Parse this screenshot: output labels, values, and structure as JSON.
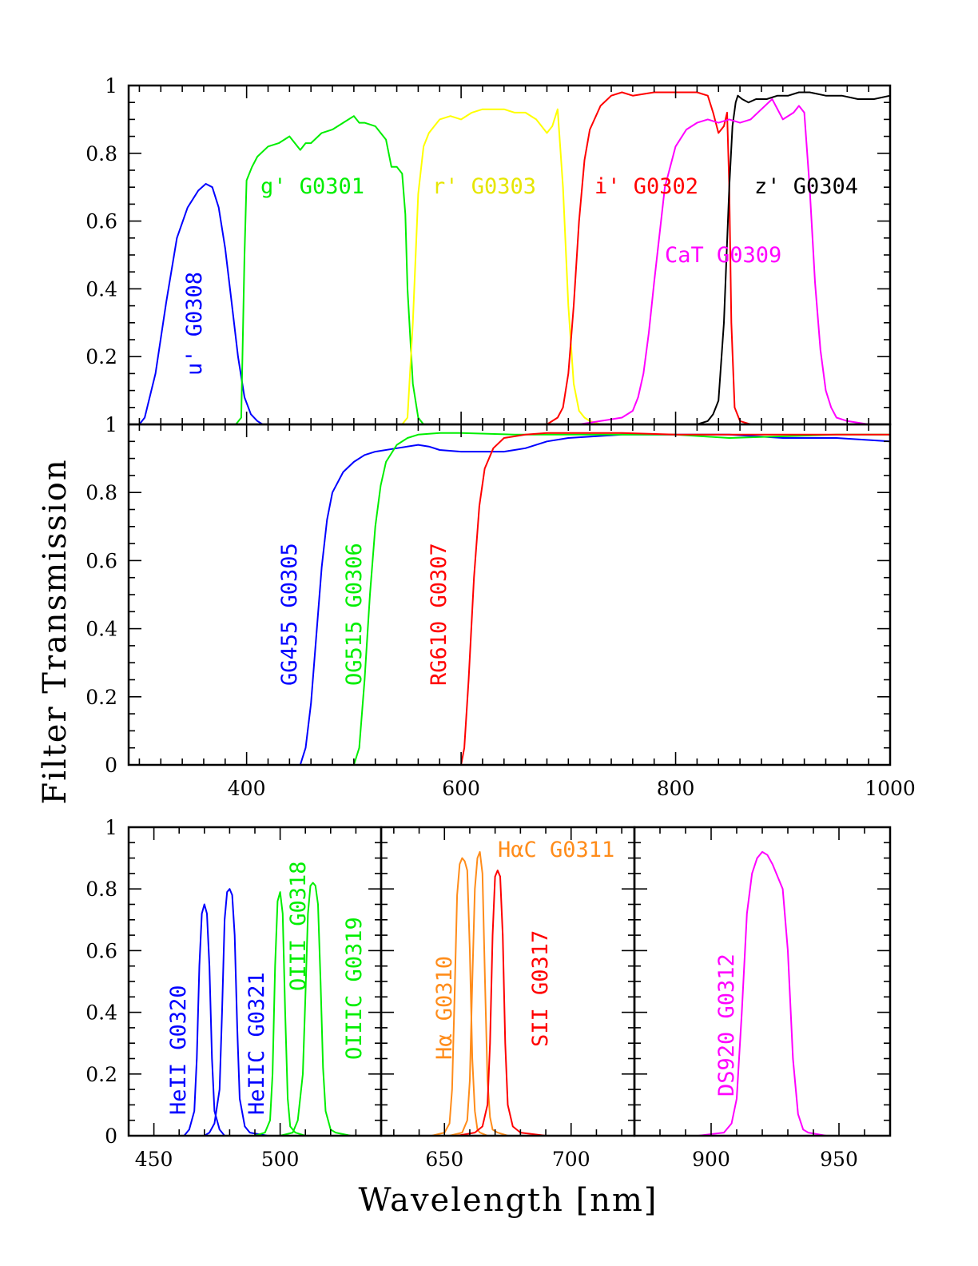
{
  "ylabel": "Filter Transmission",
  "xlabel": "Wavelength [nm]",
  "colors": {
    "blue": "#0000ff",
    "green": "#00ee00",
    "yellow": "#ffff00",
    "red": "#ff0000",
    "black": "#000000",
    "magenta": "#ff00ff",
    "orange": "#ff8c1a"
  },
  "chart_data": [
    {
      "type": "line",
      "panel": "broadband",
      "xlim": [
        290,
        1000
      ],
      "ylim": [
        0,
        1
      ],
      "yticks": [
        0.2,
        0.4,
        0.6,
        0.8,
        1
      ],
      "yticklabels": [
        "0.2",
        "0.4",
        "0.6",
        "0.8",
        "1"
      ],
      "series": [
        {
          "name": "u' G0308",
          "color": "blue",
          "label_orient": "vertical",
          "x": [
            300,
            305,
            315,
            325,
            335,
            345,
            355,
            362,
            368,
            374,
            380,
            386,
            392,
            398,
            404,
            410,
            415,
            420
          ],
          "y": [
            0,
            0.02,
            0.15,
            0.36,
            0.55,
            0.64,
            0.69,
            0.71,
            0.7,
            0.64,
            0.52,
            0.36,
            0.2,
            0.08,
            0.03,
            0.01,
            0,
            0
          ]
        },
        {
          "name": "g' G0301",
          "color": "green",
          "label_orient": "horizontal",
          "x": [
            390,
            395,
            398,
            400,
            405,
            410,
            420,
            430,
            440,
            450,
            455,
            460,
            470,
            480,
            490,
            500,
            505,
            510,
            520,
            530,
            535,
            540,
            545,
            548,
            550,
            555,
            560,
            565
          ],
          "y": [
            0,
            0.02,
            0.5,
            0.72,
            0.76,
            0.79,
            0.82,
            0.83,
            0.85,
            0.81,
            0.83,
            0.83,
            0.86,
            0.87,
            0.89,
            0.91,
            0.89,
            0.89,
            0.88,
            0.84,
            0.76,
            0.76,
            0.74,
            0.62,
            0.4,
            0.12,
            0.02,
            0
          ]
        },
        {
          "name": "r' G0303",
          "color": "yellow",
          "label_orient": "horizontal",
          "x": [
            545,
            550,
            555,
            560,
            565,
            570,
            575,
            580,
            590,
            600,
            610,
            620,
            630,
            640,
            650,
            660,
            670,
            680,
            685,
            690,
            695,
            700,
            705,
            710,
            715,
            720,
            730
          ],
          "y": [
            0,
            0.02,
            0.3,
            0.68,
            0.82,
            0.86,
            0.88,
            0.9,
            0.91,
            0.9,
            0.92,
            0.93,
            0.93,
            0.93,
            0.92,
            0.92,
            0.9,
            0.86,
            0.88,
            0.93,
            0.7,
            0.35,
            0.12,
            0.04,
            0.02,
            0.01,
            0
          ]
        },
        {
          "name": "i' G0302",
          "color": "red",
          "label_orient": "horizontal",
          "x": [
            680,
            690,
            695,
            700,
            705,
            710,
            715,
            720,
            730,
            740,
            750,
            760,
            780,
            800,
            820,
            830,
            835,
            840,
            845,
            848,
            850,
            852,
            855,
            860,
            870
          ],
          "y": [
            0,
            0.02,
            0.05,
            0.15,
            0.35,
            0.6,
            0.78,
            0.87,
            0.94,
            0.97,
            0.98,
            0.97,
            0.98,
            0.98,
            0.98,
            0.97,
            0.92,
            0.86,
            0.88,
            0.92,
            0.7,
            0.3,
            0.05,
            0.01,
            0
          ]
        },
        {
          "name": "z' G0304",
          "color": "black",
          "label_orient": "horizontal",
          "x": [
            800,
            820,
            830,
            835,
            840,
            845,
            850,
            853,
            856,
            858,
            862,
            868,
            875,
            885,
            895,
            905,
            915,
            925,
            940,
            955,
            970,
            985,
            1000
          ],
          "y": [
            0,
            0,
            0.01,
            0.03,
            0.07,
            0.3,
            0.7,
            0.88,
            0.95,
            0.97,
            0.96,
            0.95,
            0.96,
            0.96,
            0.97,
            0.97,
            0.98,
            0.98,
            0.97,
            0.97,
            0.96,
            0.96,
            0.97
          ]
        },
        {
          "name": "CaT G0309",
          "color": "magenta",
          "label_orient": "horizontal",
          "x": [
            710,
            730,
            750,
            760,
            765,
            770,
            775,
            780,
            790,
            800,
            810,
            820,
            830,
            840,
            850,
            860,
            870,
            880,
            890,
            900,
            910,
            915,
            920,
            925,
            930,
            935,
            940,
            945,
            950,
            960,
            980,
            1000
          ],
          "y": [
            0,
            0.01,
            0.02,
            0.04,
            0.08,
            0.15,
            0.27,
            0.42,
            0.7,
            0.82,
            0.87,
            0.89,
            0.9,
            0.89,
            0.9,
            0.89,
            0.9,
            0.93,
            0.96,
            0.9,
            0.92,
            0.94,
            0.92,
            0.7,
            0.42,
            0.22,
            0.1,
            0.05,
            0.02,
            0.01,
            0,
            0
          ]
        }
      ],
      "labels": [
        "u' G0308",
        "g' G0301",
        "r' G0303",
        "i' G0302",
        "z' G0304",
        "CaT G0309"
      ]
    },
    {
      "type": "line",
      "panel": "longpass",
      "xlim": [
        290,
        1000
      ],
      "ylim": [
        0,
        1
      ],
      "xticks": [
        400,
        600,
        800,
        1000
      ],
      "xticklabels": [
        "400",
        "600",
        "800",
        "1000"
      ],
      "yticks": [
        0,
        0.2,
        0.4,
        0.6,
        0.8,
        1
      ],
      "yticklabels": [
        "0",
        "0.2",
        "0.4",
        "0.6",
        "0.8",
        "1"
      ],
      "series": [
        {
          "name": "GG455 G0305",
          "color": "blue",
          "label_orient": "vertical",
          "x": [
            450,
            455,
            460,
            465,
            470,
            475,
            480,
            490,
            500,
            510,
            520,
            540,
            560,
            570,
            580,
            600,
            620,
            640,
            660,
            680,
            700,
            750,
            800,
            850,
            900,
            950,
            1000
          ],
          "y": [
            0,
            0.05,
            0.18,
            0.38,
            0.58,
            0.72,
            0.8,
            0.86,
            0.89,
            0.91,
            0.92,
            0.93,
            0.94,
            0.935,
            0.925,
            0.92,
            0.92,
            0.92,
            0.93,
            0.95,
            0.96,
            0.97,
            0.97,
            0.97,
            0.96,
            0.96,
            0.95
          ]
        },
        {
          "name": "OG515 G0306",
          "color": "green",
          "label_orient": "vertical",
          "x": [
            500,
            505,
            510,
            515,
            520,
            525,
            530,
            540,
            550,
            560,
            580,
            600,
            650,
            700,
            750,
            800,
            850,
            900,
            950,
            1000
          ],
          "y": [
            0,
            0.05,
            0.25,
            0.5,
            0.7,
            0.82,
            0.89,
            0.94,
            0.96,
            0.97,
            0.975,
            0.975,
            0.97,
            0.97,
            0.97,
            0.97,
            0.96,
            0.965,
            0.97,
            0.97
          ]
        },
        {
          "name": "RG610 G0307",
          "color": "red",
          "label_orient": "vertical",
          "x": [
            600,
            603,
            607,
            612,
            617,
            622,
            630,
            640,
            660,
            680,
            700,
            750,
            800,
            850,
            900,
            950,
            1000
          ],
          "y": [
            0,
            0.05,
            0.25,
            0.55,
            0.76,
            0.87,
            0.93,
            0.96,
            0.97,
            0.975,
            0.975,
            0.975,
            0.97,
            0.97,
            0.97,
            0.97,
            0.97
          ]
        }
      ],
      "labels": [
        "GG455 G0305",
        "OG515 G0306",
        "RG610 G0307"
      ]
    },
    {
      "type": "line",
      "panel": "narrowband-1",
      "xlim": [
        440,
        540
      ],
      "ylim": [
        0,
        1
      ],
      "xticks": [
        450,
        500
      ],
      "xticklabels": [
        "450",
        "500"
      ],
      "yticks": [
        0,
        0.2,
        0.4,
        0.6,
        0.8,
        1
      ],
      "yticklabels": [
        "0",
        "0.2",
        "0.4",
        "0.6",
        "0.8",
        "1"
      ],
      "series": [
        {
          "name": "HeII G0320",
          "color": "blue",
          "label_orient": "vertical",
          "x": [
            455,
            462,
            464,
            466,
            467,
            468,
            469,
            470,
            471,
            472,
            473,
            474,
            476,
            478,
            485
          ],
          "y": [
            0,
            0,
            0.02,
            0.08,
            0.25,
            0.55,
            0.72,
            0.75,
            0.72,
            0.55,
            0.25,
            0.08,
            0.02,
            0,
            0
          ]
        },
        {
          "name": "HeIIC G0321",
          "color": "blue",
          "label_orient": "vertical",
          "x": [
            470,
            472,
            474,
            476,
            477,
            478,
            479,
            480,
            481,
            482,
            483,
            484,
            486,
            488,
            495
          ],
          "y": [
            0,
            0.01,
            0.04,
            0.15,
            0.4,
            0.7,
            0.79,
            0.8,
            0.78,
            0.65,
            0.35,
            0.12,
            0.03,
            0.01,
            0
          ]
        },
        {
          "name": "OIII G0318",
          "color": "green",
          "label_orient": "vertical",
          "x": [
            490,
            494,
            496,
            497,
            498,
            499,
            500,
            501,
            502,
            503,
            504,
            506,
            510
          ],
          "y": [
            0,
            0.01,
            0.05,
            0.2,
            0.55,
            0.76,
            0.79,
            0.72,
            0.4,
            0.12,
            0.03,
            0.01,
            0
          ]
        },
        {
          "name": "OIIIC G0319",
          "color": "green",
          "label_orient": "vertical",
          "x": [
            500,
            505,
            507,
            509,
            510,
            511,
            512,
            513,
            514,
            515,
            516,
            517,
            518,
            520,
            522,
            528,
            540
          ],
          "y": [
            0,
            0.01,
            0.05,
            0.2,
            0.45,
            0.72,
            0.81,
            0.82,
            0.81,
            0.75,
            0.5,
            0.22,
            0.08,
            0.02,
            0.01,
            0,
            0
          ]
        }
      ],
      "labels": [
        "HeII G0320",
        "HeIIC G0321",
        "OIII G0318",
        "OIIIC G0319"
      ]
    },
    {
      "type": "line",
      "panel": "narrowband-2",
      "xlim": [
        625,
        725
      ],
      "ylim": [
        0,
        1
      ],
      "xticks": [
        650,
        700
      ],
      "xticklabels": [
        "650",
        "700"
      ],
      "series": [
        {
          "name": "Hα G0310",
          "color": "orange",
          "label_orient": "vertical",
          "x": [
            645,
            650,
            652,
            653,
            654,
            655,
            656,
            657,
            658,
            659,
            660,
            661,
            662,
            663,
            664,
            667,
            672
          ],
          "y": [
            0,
            0.01,
            0.04,
            0.15,
            0.45,
            0.78,
            0.88,
            0.9,
            0.89,
            0.86,
            0.6,
            0.25,
            0.08,
            0.02,
            0.01,
            0,
            0
          ]
        },
        {
          "name": "HαC G0311",
          "color": "orange",
          "label_orient": "horizontal",
          "x": [
            652,
            657,
            659,
            660,
            661,
            662,
            663,
            664,
            665,
            666,
            667,
            668,
            669,
            671,
            675
          ],
          "y": [
            0,
            0.01,
            0.05,
            0.18,
            0.5,
            0.8,
            0.9,
            0.92,
            0.85,
            0.5,
            0.18,
            0.06,
            0.02,
            0.01,
            0
          ]
        },
        {
          "name": "SII G0317",
          "color": "red",
          "label_orient": "vertical",
          "x": [
            655,
            662,
            665,
            667,
            668,
            669,
            670,
            671,
            672,
            673,
            674,
            675,
            677,
            680,
            690,
            710
          ],
          "y": [
            0,
            0.01,
            0.03,
            0.1,
            0.3,
            0.65,
            0.84,
            0.86,
            0.84,
            0.65,
            0.3,
            0.1,
            0.03,
            0.01,
            0,
            0
          ]
        }
      ],
      "labels": [
        "Hα G0310",
        "HαC G0311",
        "SII G0317"
      ]
    },
    {
      "type": "line",
      "panel": "narrowband-3",
      "xlim": [
        870,
        970
      ],
      "ylim": [
        0,
        1
      ],
      "xticks": [
        900,
        950
      ],
      "xticklabels": [
        "900",
        "950"
      ],
      "series": [
        {
          "name": "DS920 G0312",
          "color": "magenta",
          "label_orient": "vertical",
          "x": [
            895,
            905,
            908,
            910,
            912,
            914,
            916,
            918,
            920,
            922,
            924,
            926,
            928,
            930,
            932,
            934,
            936,
            938,
            945
          ],
          "y": [
            0,
            0.01,
            0.04,
            0.12,
            0.4,
            0.72,
            0.85,
            0.9,
            0.92,
            0.91,
            0.88,
            0.84,
            0.8,
            0.6,
            0.25,
            0.07,
            0.02,
            0.01,
            0
          ]
        }
      ],
      "labels": [
        "DS920 G0312"
      ]
    }
  ]
}
